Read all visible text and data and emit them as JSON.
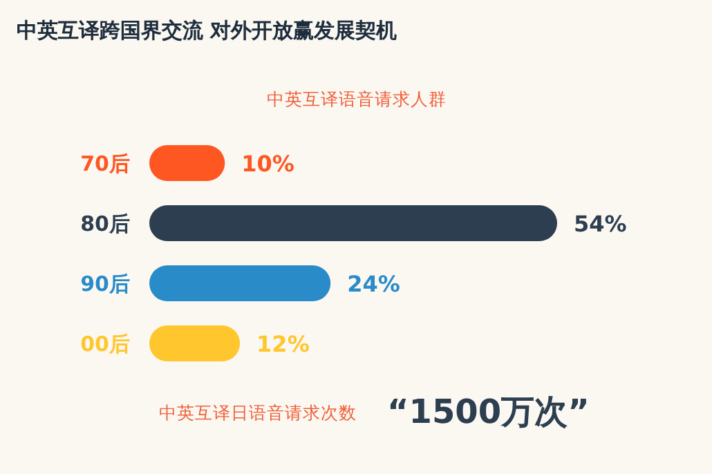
{
  "chart_data": {
    "type": "bar",
    "orientation": "horizontal",
    "title": "中英互译跨国界交流  对外开放赢发展契机",
    "subtitle": "中英互译语音请求人群",
    "categories": [
      "70后",
      "80后",
      "90后",
      "00后"
    ],
    "values": [
      10,
      54,
      24,
      12
    ],
    "colors": [
      "#ff5722",
      "#2c3e50",
      "#2a8bc9",
      "#ffc62e"
    ],
    "value_labels": [
      "10%",
      "54%",
      "24%",
      "12%"
    ],
    "annotations": [
      "中英互译日语音请求次数",
      "“1500万次”"
    ]
  }
}
